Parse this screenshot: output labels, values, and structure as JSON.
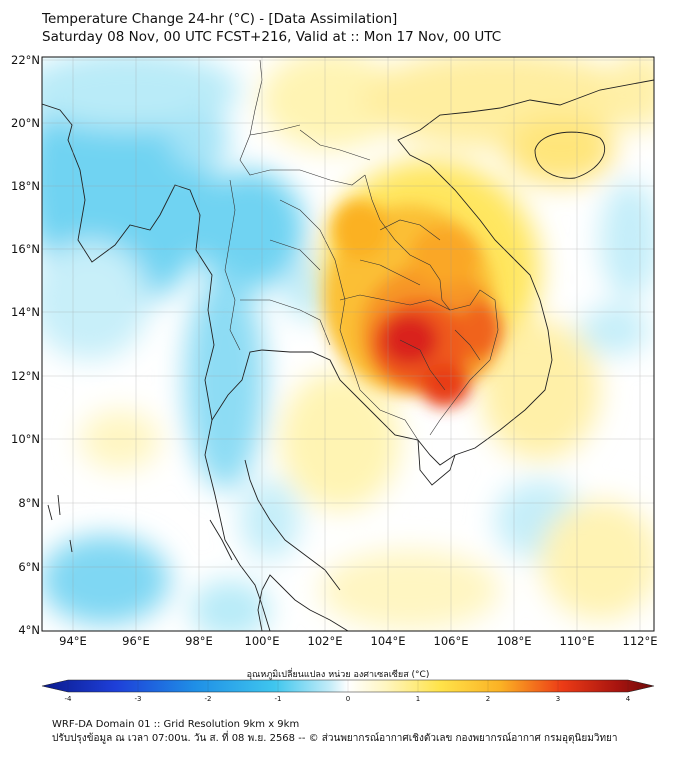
{
  "header": {
    "title_line1": "Temperature Change 24-hr (°C) - [Data Assimilation]",
    "title_line2": "Saturday 08 Nov, 00 UTC FCST+216, Valid at :: Mon 17 Nov, 00 UTC"
  },
  "map": {
    "lon_range": [
      93,
      112.5
    ],
    "lat_range": [
      4,
      22.2
    ],
    "lon_ticks": [
      "94°E",
      "96°E",
      "98°E",
      "100°E",
      "102°E",
      "104°E",
      "106°E",
      "108°E",
      "110°E",
      "112°E"
    ],
    "lat_ticks": [
      "22°N",
      "20°N",
      "18°N",
      "16°N",
      "14°N",
      "12°N",
      "10°N",
      "8°N",
      "6°N",
      "4°N"
    ],
    "grid": true,
    "colors": {
      "cold": "#3fc6ee",
      "light_cold": "#c3ecf8",
      "neutral": "#ffffff",
      "warm": "#fff1a6",
      "orange": "#fbb124",
      "hot": "#ec3b16",
      "very_hot": "#c81e12",
      "coast": "#222222"
    }
  },
  "colorbar": {
    "title": "อุณหภูมิเปลี่ยนแปลง หน่วย องศาเซลเซียส (°C)",
    "ticks": [
      "-4",
      "-3",
      "-2",
      "-1",
      "0",
      "1",
      "2",
      "3",
      "4"
    ],
    "min_color": "#0a1a8c",
    "max_color": "#6b0a0a"
  },
  "footer": {
    "line1": "WRF-DA Domain 01 :: Grid Resolution 9km x 9km",
    "line2": "ปรับปรุงข้อมูล ณ เวลา 07:00น. วัน ส. ที่ 08 พ.ย. 2568 -- © ส่วนพยากรณ์อากาศเชิงตัวเลข กองพยากรณ์อากาศ กรมอุตุนิยมวิทยา"
  }
}
